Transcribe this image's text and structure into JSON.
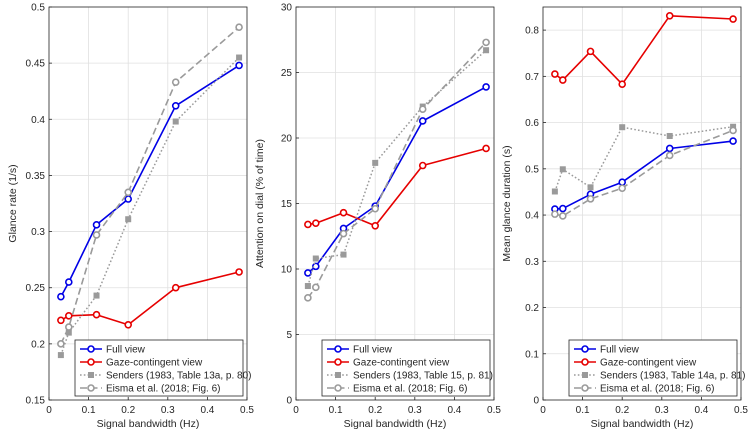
{
  "colors": {
    "full_view": "#0000e6",
    "gaze_contingent": "#e60000",
    "senders": "#9a9a9a",
    "eisma": "#9a9a9a",
    "grid": "#e0e0e0",
    "axis": "#262626"
  },
  "chart_data": [
    {
      "type": "line",
      "title": "",
      "xlabel": "Signal bandwidth (Hz)",
      "ylabel": "Glance rate (1/s)",
      "xlim": [
        0,
        0.5
      ],
      "ylim": [
        0.15,
        0.5
      ],
      "xticks": [
        0,
        0.1,
        0.2,
        0.3,
        0.4,
        0.5
      ],
      "xtick_labels": [
        "0",
        "0.1",
        "0.2",
        "0.3",
        "0.4",
        "0.5"
      ],
      "yticks": [
        0.15,
        0.2,
        0.25,
        0.3,
        0.35,
        0.4,
        0.45,
        0.5
      ],
      "ytick_labels": [
        "0.15",
        "0.2",
        "0.25",
        "0.3",
        "0.35",
        "0.4",
        "0.45",
        "0.5"
      ],
      "grid": true,
      "legend_position": "bottom-right",
      "series": [
        {
          "name": "Full view",
          "style": "full",
          "x": [
            0.03,
            0.05,
            0.12,
            0.2,
            0.32,
            0.48
          ],
          "y": [
            0.242,
            0.255,
            0.306,
            0.329,
            0.412,
            0.448
          ]
        },
        {
          "name": "Gaze-contingent view",
          "style": "gaze",
          "x": [
            0.03,
            0.05,
            0.12,
            0.2,
            0.32,
            0.48
          ],
          "y": [
            0.221,
            0.225,
            0.226,
            0.217,
            0.25,
            0.264
          ]
        },
        {
          "name": "Senders (1983, Table 13a, p. 80)",
          "style": "senders",
          "x": [
            0.03,
            0.05,
            0.12,
            0.2,
            0.32,
            0.48
          ],
          "y": [
            0.19,
            0.21,
            0.243,
            0.311,
            0.398,
            0.455
          ]
        },
        {
          "name": "Eisma et al. (2018; Fig. 6)",
          "style": "eisma",
          "x": [
            0.03,
            0.05,
            0.12,
            0.2,
            0.32,
            0.48
          ],
          "y": [
            0.2,
            0.215,
            0.297,
            0.335,
            0.433,
            0.482
          ]
        }
      ]
    },
    {
      "type": "line",
      "title": "",
      "xlabel": "Signal bandwidth (Hz)",
      "ylabel": "Attention on dial (% of time)",
      "xlim": [
        0,
        0.5
      ],
      "ylim": [
        0,
        30
      ],
      "xticks": [
        0,
        0.1,
        0.2,
        0.3,
        0.4,
        0.5
      ],
      "xtick_labels": [
        "0",
        "0.1",
        "0.2",
        "0.3",
        "0.4",
        "0.5"
      ],
      "yticks": [
        0,
        5,
        10,
        15,
        20,
        25,
        30
      ],
      "ytick_labels": [
        "0",
        "5",
        "10",
        "15",
        "20",
        "25",
        "30"
      ],
      "grid": true,
      "legend_position": "bottom-right",
      "series": [
        {
          "name": "Full view",
          "style": "full",
          "x": [
            0.03,
            0.05,
            0.12,
            0.2,
            0.32,
            0.48
          ],
          "y": [
            9.7,
            10.2,
            13.1,
            14.8,
            21.3,
            23.9
          ]
        },
        {
          "name": "Gaze-contingent view",
          "style": "gaze",
          "x": [
            0.03,
            0.05,
            0.12,
            0.2,
            0.32,
            0.48
          ],
          "y": [
            13.4,
            13.5,
            14.3,
            13.3,
            17.9,
            19.2
          ]
        },
        {
          "name": "Senders (1983, Table 15, p. 81)",
          "style": "senders",
          "x": [
            0.03,
            0.05,
            0.12,
            0.2,
            0.32,
            0.48
          ],
          "y": [
            8.7,
            10.8,
            11.1,
            18.1,
            22.4,
            26.7
          ]
        },
        {
          "name": "Eisma et al. (2018; Fig. 6)",
          "style": "eisma",
          "x": [
            0.03,
            0.05,
            0.12,
            0.2,
            0.32,
            0.48
          ],
          "y": [
            7.8,
            8.6,
            12.7,
            14.6,
            22.2,
            27.3
          ]
        }
      ]
    },
    {
      "type": "line",
      "title": "",
      "xlabel": "Signal bandwidth (Hz)",
      "ylabel": "Mean glance duration (s)",
      "xlim": [
        0,
        0.5
      ],
      "ylim": [
        0,
        0.85
      ],
      "xticks": [
        0,
        0.1,
        0.2,
        0.3,
        0.4,
        0.5
      ],
      "xtick_labels": [
        "0",
        "0.1",
        "0.2",
        "0.3",
        "0.4",
        "0.5"
      ],
      "yticks": [
        0,
        0.1,
        0.2,
        0.3,
        0.4,
        0.5,
        0.6,
        0.7,
        0.8
      ],
      "ytick_labels": [
        "0",
        "0.1",
        "0.2",
        "0.3",
        "0.4",
        "0.5",
        "0.6",
        "0.7",
        "0.8"
      ],
      "grid": true,
      "legend_position": "bottom-right",
      "series": [
        {
          "name": "Full view",
          "style": "full",
          "x": [
            0.03,
            0.05,
            0.12,
            0.2,
            0.32,
            0.48
          ],
          "y": [
            0.413,
            0.414,
            0.445,
            0.471,
            0.544,
            0.56
          ]
        },
        {
          "name": "Gaze-contingent view",
          "style": "gaze",
          "x": [
            0.03,
            0.05,
            0.12,
            0.2,
            0.32,
            0.48
          ],
          "y": [
            0.705,
            0.692,
            0.754,
            0.683,
            0.831,
            0.824
          ]
        },
        {
          "name": "Senders (1983, Table 14a, p. 81)",
          "style": "senders",
          "x": [
            0.03,
            0.05,
            0.12,
            0.2,
            0.32,
            0.48
          ],
          "y": [
            0.451,
            0.499,
            0.46,
            0.59,
            0.571,
            0.591
          ]
        },
        {
          "name": "Eisma et al. (2018; Fig. 6)",
          "style": "eisma",
          "x": [
            0.03,
            0.05,
            0.12,
            0.2,
            0.32,
            0.48
          ],
          "y": [
            0.402,
            0.398,
            0.435,
            0.458,
            0.529,
            0.583
          ]
        }
      ]
    }
  ]
}
